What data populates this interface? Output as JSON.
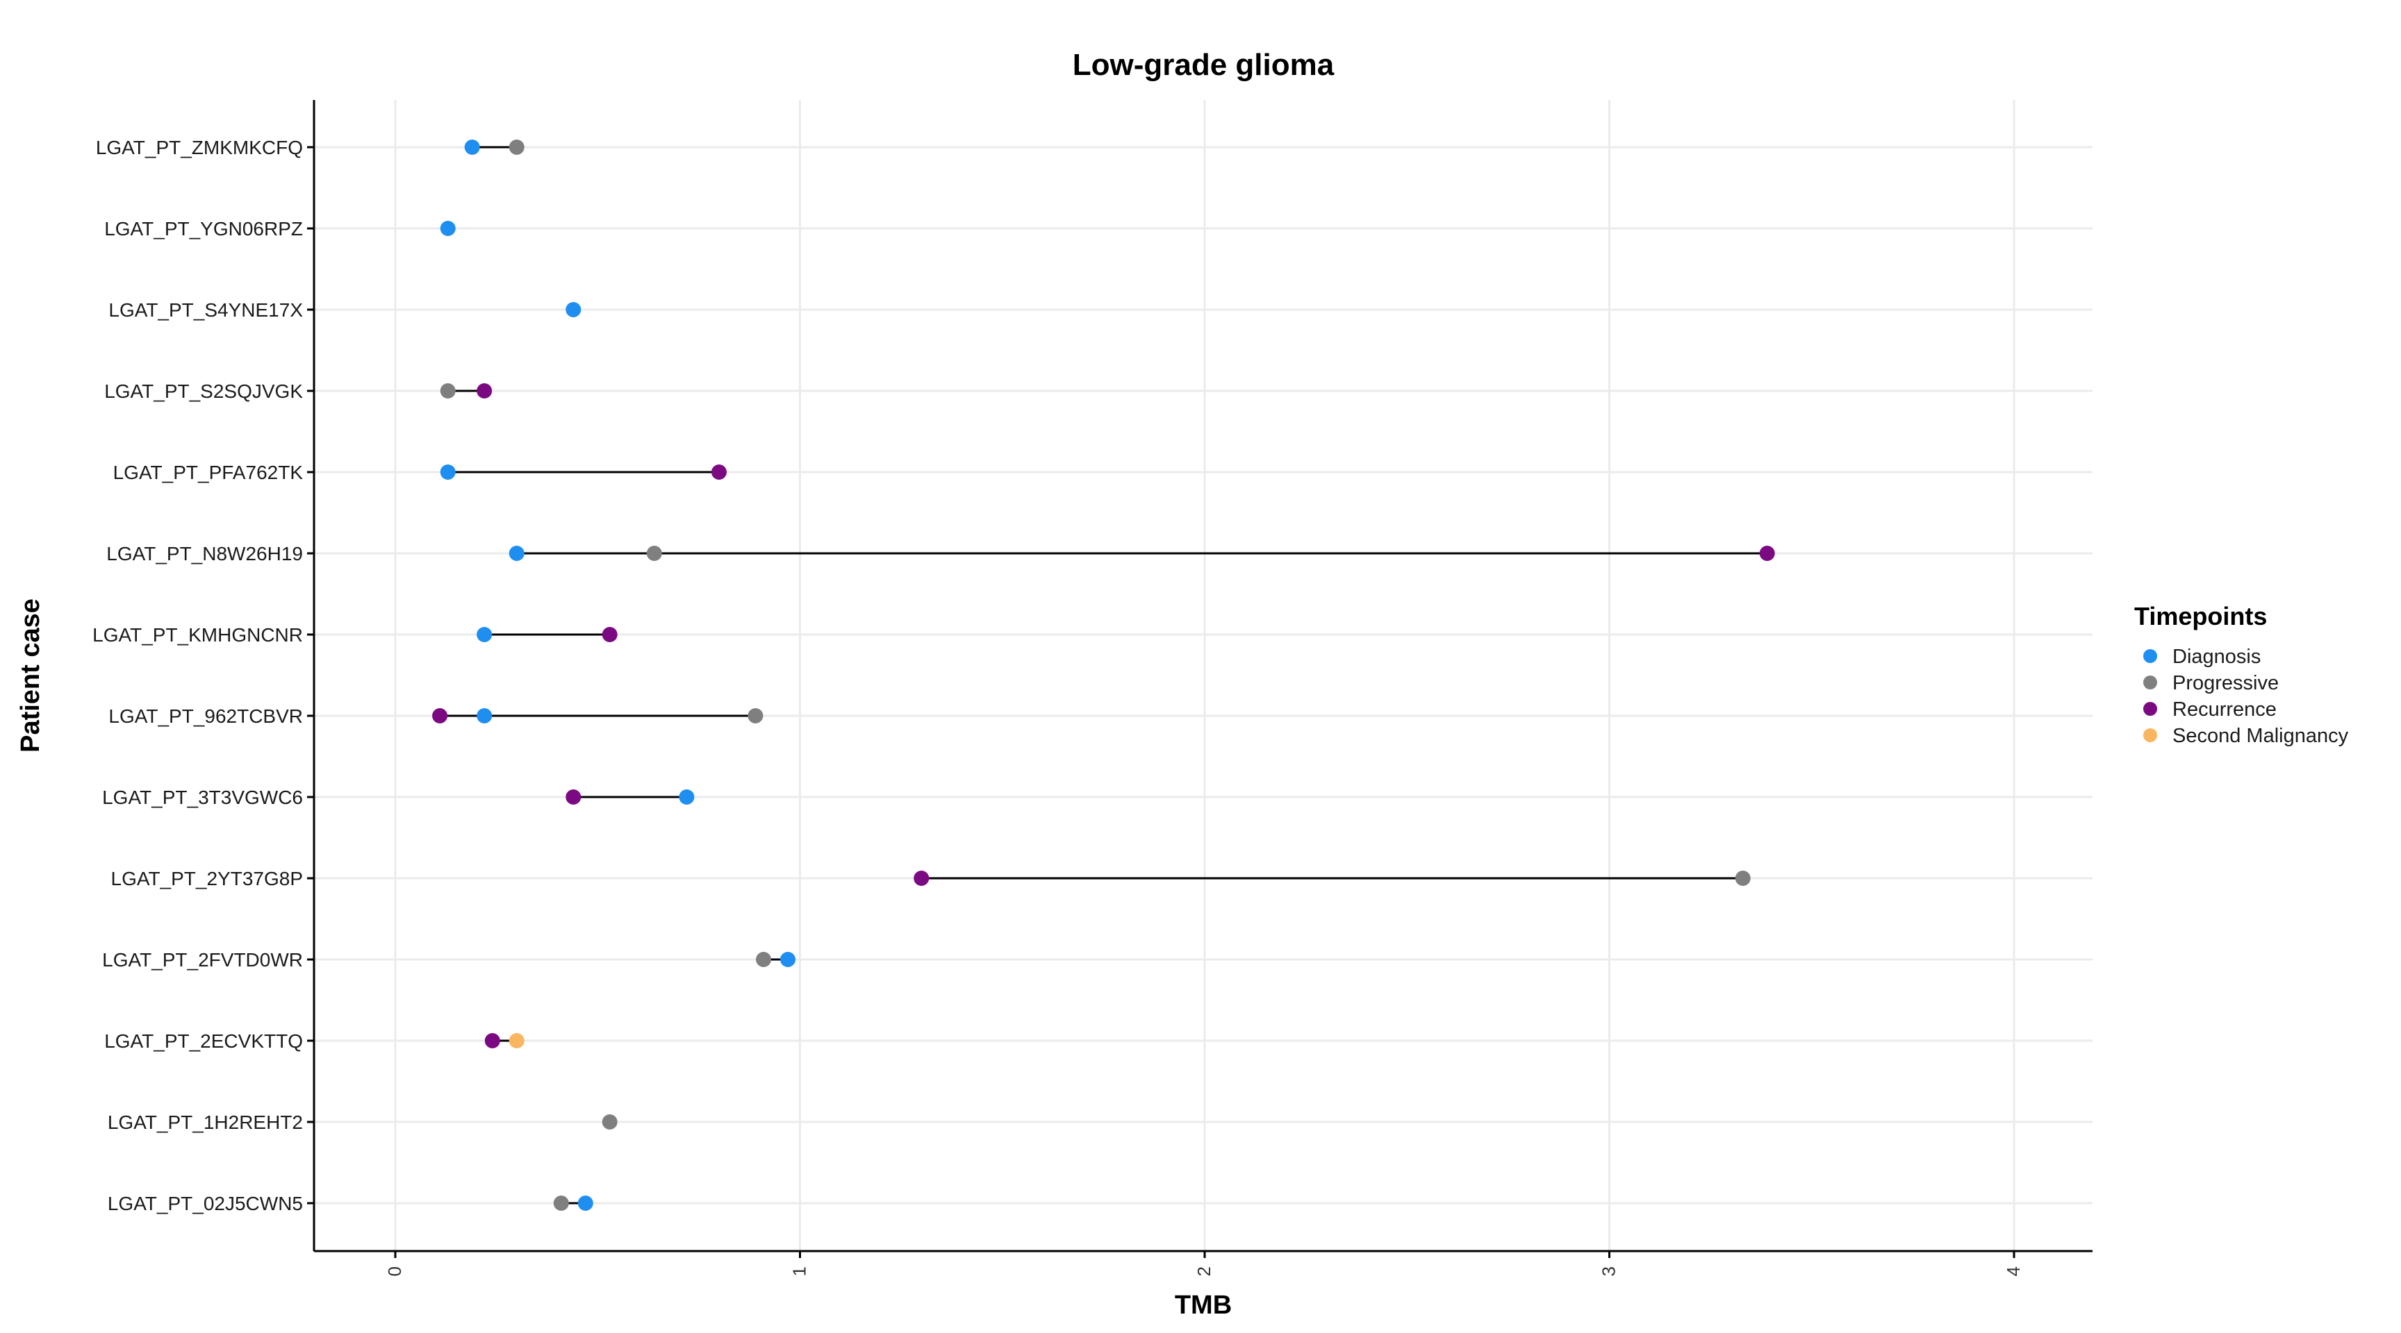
{
  "chart_data": {
    "type": "dumbbell",
    "title": "Low-grade glioma",
    "xlabel": "TMB",
    "ylabel": "Patient case",
    "xlim": [
      -0.2,
      4.2
    ],
    "xticks": [
      "0",
      "1",
      "2",
      "3",
      "4"
    ],
    "legend_title": "Timepoints",
    "legend_position": "right",
    "legend": [
      {
        "name": "Diagnosis",
        "color": "#1e8ff0"
      },
      {
        "name": "Progressive",
        "color": "#7f7f7f"
      },
      {
        "name": "Recurrence",
        "color": "#7b0a82"
      },
      {
        "name": "Second Malignancy",
        "color": "#fab560"
      }
    ],
    "categories": [
      "LGAT_PT_ZMKMKCFQ",
      "LGAT_PT_YGN06RPZ",
      "LGAT_PT_S4YNE17X",
      "LGAT_PT_S2SQJVGK",
      "LGAT_PT_PFA762TK",
      "LGAT_PT_N8W26H19",
      "LGAT_PT_KMHGNCNR",
      "LGAT_PT_962TCBVR",
      "LGAT_PT_3T3VGWC6",
      "LGAT_PT_2YT37G8P",
      "LGAT_PT_2FVTD0WR",
      "LGAT_PT_2ECVKTTQ",
      "LGAT_PT_1H2REHT2",
      "LGAT_PT_02J5CWN5"
    ],
    "points": [
      {
        "patient": "LGAT_PT_ZMKMKCFQ",
        "timepoint": "Diagnosis",
        "tmb": 0.19
      },
      {
        "patient": "LGAT_PT_ZMKMKCFQ",
        "timepoint": "Progressive",
        "tmb": 0.3
      },
      {
        "patient": "LGAT_PT_YGN06RPZ",
        "timepoint": "Diagnosis",
        "tmb": 0.13
      },
      {
        "patient": "LGAT_PT_S4YNE17X",
        "timepoint": "Diagnosis",
        "tmb": 0.44
      },
      {
        "patient": "LGAT_PT_S2SQJVGK",
        "timepoint": "Progressive",
        "tmb": 0.13
      },
      {
        "patient": "LGAT_PT_S2SQJVGK",
        "timepoint": "Recurrence",
        "tmb": 0.22
      },
      {
        "patient": "LGAT_PT_PFA762TK",
        "timepoint": "Diagnosis",
        "tmb": 0.13
      },
      {
        "patient": "LGAT_PT_PFA762TK",
        "timepoint": "Recurrence",
        "tmb": 0.8
      },
      {
        "patient": "LGAT_PT_N8W26H19",
        "timepoint": "Diagnosis",
        "tmb": 0.3
      },
      {
        "patient": "LGAT_PT_N8W26H19",
        "timepoint": "Progressive",
        "tmb": 0.64
      },
      {
        "patient": "LGAT_PT_N8W26H19",
        "timepoint": "Recurrence",
        "tmb": 3.39
      },
      {
        "patient": "LGAT_PT_KMHGNCNR",
        "timepoint": "Diagnosis",
        "tmb": 0.22
      },
      {
        "patient": "LGAT_PT_KMHGNCNR",
        "timepoint": "Recurrence",
        "tmb": 0.53
      },
      {
        "patient": "LGAT_PT_962TCBVR",
        "timepoint": "Recurrence",
        "tmb": 0.11
      },
      {
        "patient": "LGAT_PT_962TCBVR",
        "timepoint": "Diagnosis",
        "tmb": 0.22
      },
      {
        "patient": "LGAT_PT_962TCBVR",
        "timepoint": "Progressive",
        "tmb": 0.89
      },
      {
        "patient": "LGAT_PT_3T3VGWC6",
        "timepoint": "Recurrence",
        "tmb": 0.44
      },
      {
        "patient": "LGAT_PT_3T3VGWC6",
        "timepoint": "Diagnosis",
        "tmb": 0.72
      },
      {
        "patient": "LGAT_PT_2YT37G8P",
        "timepoint": "Recurrence",
        "tmb": 1.3
      },
      {
        "patient": "LGAT_PT_2YT37G8P",
        "timepoint": "Progressive",
        "tmb": 3.33
      },
      {
        "patient": "LGAT_PT_2FVTD0WR",
        "timepoint": "Progressive",
        "tmb": 0.91
      },
      {
        "patient": "LGAT_PT_2FVTD0WR",
        "timepoint": "Diagnosis",
        "tmb": 0.97
      },
      {
        "patient": "LGAT_PT_2ECVKTTQ",
        "timepoint": "Recurrence",
        "tmb": 0.24
      },
      {
        "patient": "LGAT_PT_2ECVKTTQ",
        "timepoint": "Second Malignancy",
        "tmb": 0.3
      },
      {
        "patient": "LGAT_PT_1H2REHT2",
        "timepoint": "Progressive",
        "tmb": 0.53
      },
      {
        "patient": "LGAT_PT_02J5CWN5",
        "timepoint": "Progressive",
        "tmb": 0.41
      },
      {
        "patient": "LGAT_PT_02J5CWN5",
        "timepoint": "Diagnosis",
        "tmb": 0.47
      }
    ]
  }
}
